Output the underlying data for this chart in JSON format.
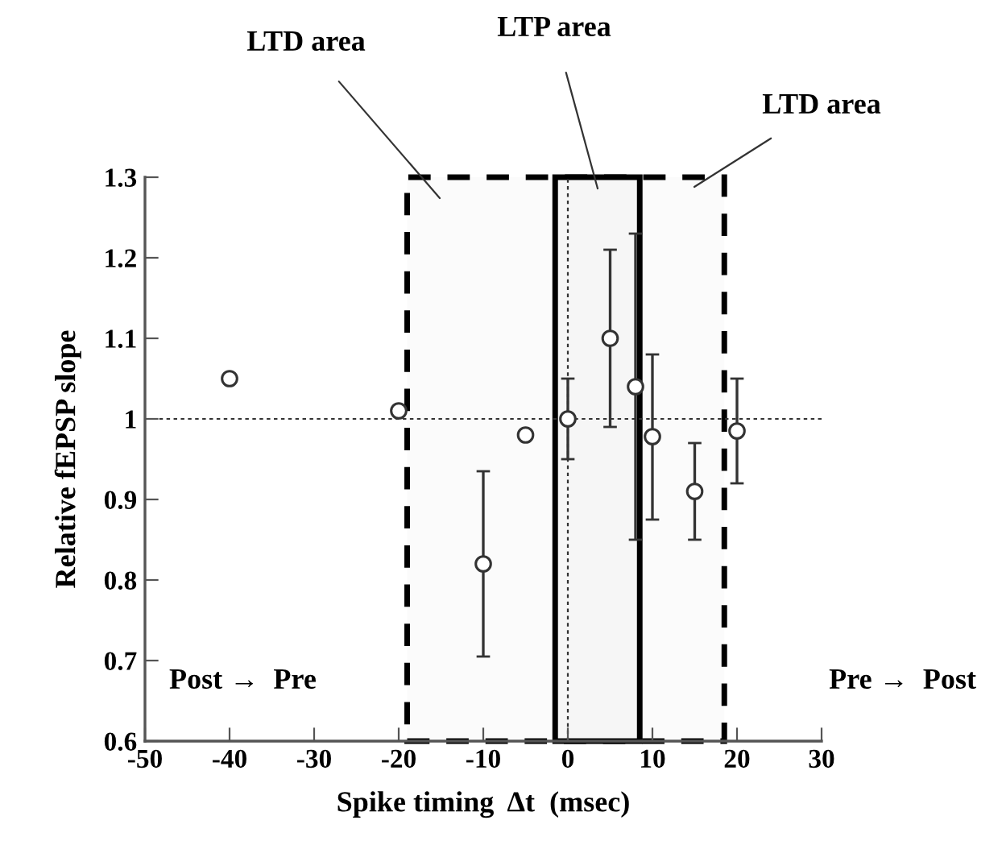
{
  "chart_data": {
    "type": "scatter",
    "xlabel": "Spike timing  Δt  (msec)",
    "ylabel": "Relative fEPSP slope",
    "x": [
      -40,
      -20,
      -10,
      -5,
      0,
      5,
      8,
      10,
      15,
      20
    ],
    "values": [
      1.05,
      1.01,
      0.82,
      0.98,
      1.0,
      1.1,
      1.04,
      0.978,
      0.91,
      0.985
    ],
    "errors": [
      null,
      null,
      [
        0.705,
        0.935
      ],
      null,
      [
        0.95,
        1.05
      ],
      [
        0.99,
        1.21
      ],
      [
        0.85,
        1.23
      ],
      [
        0.875,
        1.08
      ],
      [
        0.85,
        0.97
      ],
      [
        0.92,
        1.05
      ]
    ],
    "color": "#333333",
    "marker": "circle",
    "xlim": [
      -50,
      30
    ],
    "xticks": [
      -50,
      -40,
      -30,
      -20,
      -10,
      0,
      10,
      20,
      30
    ],
    "ylim": [
      0.6,
      1.3
    ],
    "yticks": [
      0.6,
      0.7,
      0.8,
      0.9,
      1,
      1.1,
      1.2,
      1.3
    ],
    "ref_lines": [
      {
        "axis": "y",
        "value": 1,
        "line_style": "dotted"
      },
      {
        "axis": "x",
        "value": 0,
        "line_style": "dotted"
      }
    ],
    "bands": [
      {
        "axis": "x",
        "from": -19,
        "to": 18.5,
        "color": "#fbfbfb"
      },
      {
        "axis": "x",
        "from": -1.5,
        "to": 8.5,
        "color": "#f6f6f6"
      }
    ],
    "annotations": [
      "LTD area",
      "LTP area",
      "LTD area",
      "Post →  Pre",
      "Pre →  Post"
    ],
    "grid": false,
    "legend": false
  }
}
